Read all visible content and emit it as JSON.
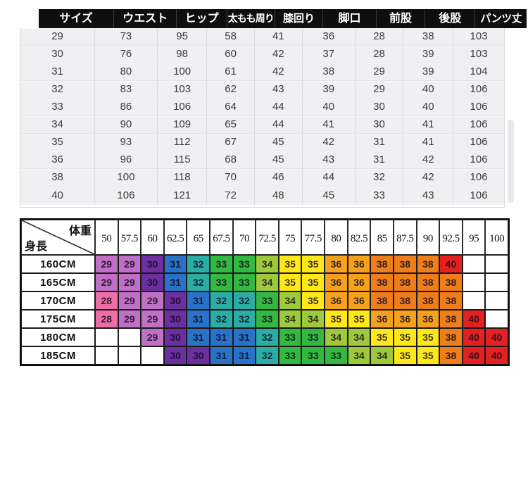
{
  "size_table": {
    "header": [
      "サイズ",
      "ウエスト",
      "ヒップ",
      "太もも周り",
      "膝回り",
      "脚口",
      "前股",
      "後股",
      "パンツ丈"
    ],
    "rows": [
      [
        29,
        73,
        95,
        58,
        41,
        36,
        28,
        38,
        103
      ],
      [
        30,
        76,
        98,
        60,
        42,
        37,
        28,
        39,
        103
      ],
      [
        31,
        80,
        100,
        61,
        42,
        38,
        29,
        39,
        104
      ],
      [
        32,
        83,
        103,
        62,
        43,
        39,
        29,
        40,
        106
      ],
      [
        33,
        86,
        106,
        64,
        44,
        40,
        30,
        40,
        106
      ],
      [
        34,
        90,
        109,
        65,
        44,
        41,
        30,
        41,
        106
      ],
      [
        35,
        93,
        112,
        67,
        45,
        42,
        31,
        41,
        106
      ],
      [
        36,
        96,
        115,
        68,
        45,
        43,
        31,
        42,
        106
      ],
      [
        38,
        100,
        118,
        70,
        46,
        44,
        32,
        42,
        106
      ],
      [
        40,
        106,
        121,
        72,
        48,
        45,
        33,
        43,
        106
      ]
    ]
  },
  "fit_matrix": {
    "corner": {
      "top_right": "体重",
      "bottom_left": "身長"
    },
    "weight_headers": [
      "50",
      "57.5",
      "60",
      "62.5",
      "65",
      "67.5",
      "70",
      "72.5",
      "75",
      "77.5",
      "80",
      "82.5",
      "85",
      "87.5",
      "90",
      "92.5",
      "95",
      "100"
    ],
    "height_rows": [
      "160CM",
      "165CM",
      "170CM",
      "175CM",
      "180CM",
      "185CM"
    ],
    "cells": [
      [
        "29",
        "29",
        "30",
        "31",
        "32",
        "33",
        "33",
        "34",
        "35",
        "35",
        "36",
        "36",
        "38",
        "38",
        "38",
        "40",
        "",
        ""
      ],
      [
        "29",
        "29",
        "30",
        "31",
        "32",
        "33",
        "33",
        "34",
        "35",
        "35",
        "36",
        "36",
        "38",
        "38",
        "38",
        "38",
        "",
        ""
      ],
      [
        "28",
        "29",
        "29",
        "30",
        "31",
        "32",
        "32",
        "33",
        "34",
        "35",
        "36",
        "36",
        "38",
        "38",
        "38",
        "38",
        "",
        ""
      ],
      [
        "28",
        "29",
        "29",
        "30",
        "31",
        "32",
        "32",
        "33",
        "34",
        "34",
        "35",
        "35",
        "36",
        "36",
        "36",
        "38",
        "40",
        ""
      ],
      [
        "",
        "",
        "29",
        "30",
        "31",
        "31",
        "31",
        "32",
        "33",
        "33",
        "34",
        "34",
        "35",
        "35",
        "35",
        "38",
        "40",
        "40"
      ],
      [
        "",
        "",
        "",
        "30",
        "30",
        "31",
        "31",
        "32",
        "33",
        "33",
        "33",
        "34",
        "34",
        "35",
        "35",
        "38",
        "40",
        "40"
      ]
    ],
    "size_colors": {
      "28": "#ED6EA6",
      "29": "#BF6FC4",
      "30": "#6B2FA0",
      "31": "#2A72C8",
      "32": "#2BACA4",
      "33": "#33B842",
      "34": "#9FC93C",
      "35": "#FFE81A",
      "36": "#F5A11E",
      "38": "#EE7D1C",
      "40": "#E32121"
    }
  }
}
